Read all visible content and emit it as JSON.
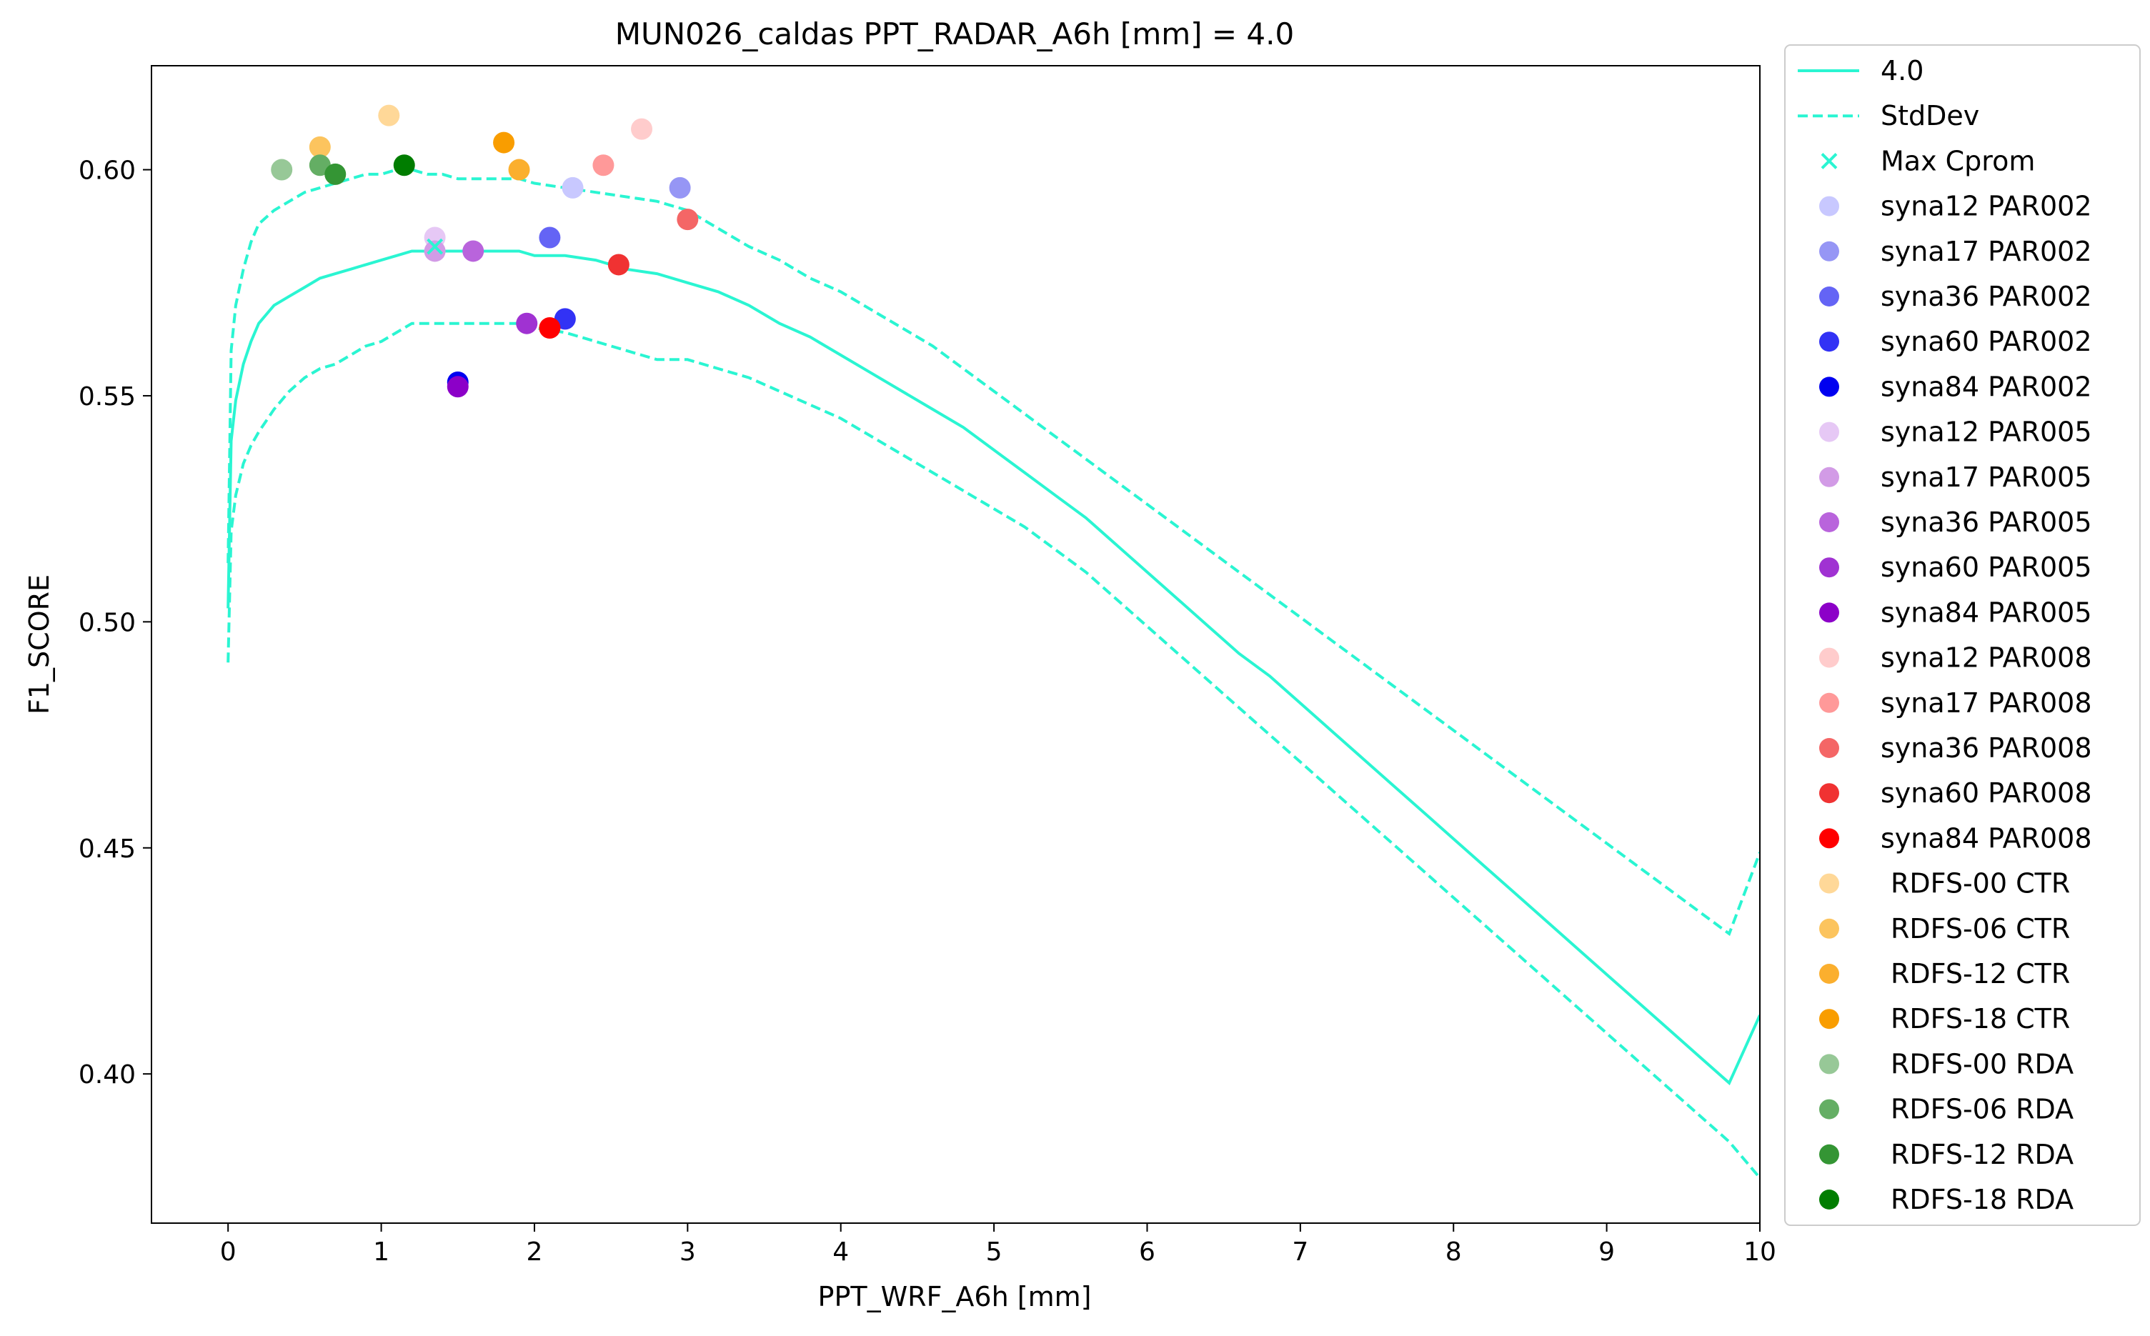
{
  "chart_data": {
    "type": "scatter",
    "title": "MUN026_caldas    PPT_RADAR_A6h [mm] = 4.0",
    "xlabel": "PPT_WRF_A6h [mm]",
    "ylabel": "F1_SCORE",
    "xlim": [
      -0.5,
      10
    ],
    "ylim": [
      0.367,
      0.623
    ],
    "xticks": [
      "0",
      "1",
      "2",
      "3",
      "4",
      "5",
      "6",
      "7",
      "8",
      "9",
      "10"
    ],
    "yticks": [
      "0.40",
      "0.45",
      "0.50",
      "0.55",
      "0.60"
    ],
    "grid": false,
    "legend_position": "outside-right",
    "curve_color": "#2af5d2",
    "lines": [
      {
        "name": "4.0",
        "style": "solid",
        "x": [
          0,
          0.02,
          0.05,
          0.1,
          0.15,
          0.2,
          0.3,
          0.4,
          0.5,
          0.6,
          0.7,
          0.8,
          0.9,
          1.0,
          1.1,
          1.2,
          1.3,
          1.4,
          1.5,
          1.6,
          1.7,
          1.8,
          1.9,
          2.0,
          2.2,
          2.4,
          2.6,
          2.8,
          3.0,
          3.2,
          3.4,
          3.6,
          3.8,
          4.0,
          4.2,
          4.4,
          4.6,
          4.8,
          5.0,
          5.2,
          5.4,
          5.6,
          5.8,
          6.0,
          6.2,
          6.4,
          6.6,
          6.8,
          7.0,
          7.2,
          7.4,
          7.6,
          7.8,
          8.0,
          8.2,
          8.4,
          8.6,
          8.8,
          9.0,
          9.2,
          9.4,
          9.6,
          9.8,
          10.0
        ],
        "y": [
          0.503,
          0.54,
          0.549,
          0.557,
          0.562,
          0.566,
          0.57,
          0.572,
          0.574,
          0.576,
          0.577,
          0.578,
          0.579,
          0.58,
          0.581,
          0.582,
          0.582,
          0.582,
          0.582,
          0.582,
          0.582,
          0.582,
          0.582,
          0.581,
          0.581,
          0.58,
          0.578,
          0.577,
          0.575,
          0.573,
          0.57,
          0.566,
          0.563,
          0.559,
          0.555,
          0.551,
          0.547,
          0.543,
          0.538,
          0.533,
          0.528,
          0.523,
          0.517,
          0.511,
          0.505,
          0.499,
          0.493,
          0.488,
          0.482,
          0.476,
          0.47,
          0.464,
          0.458,
          0.452,
          0.446,
          0.44,
          0.434,
          0.428,
          0.422,
          0.416,
          0.41,
          0.404,
          0.398,
          0.413
        ]
      },
      {
        "name": "StdDev",
        "style": "dashed",
        "x": [
          0,
          0.02,
          0.05,
          0.1,
          0.15,
          0.2,
          0.3,
          0.4,
          0.5,
          0.6,
          0.7,
          0.8,
          0.9,
          1.0,
          1.1,
          1.2,
          1.3,
          1.4,
          1.5,
          1.6,
          1.7,
          1.8,
          1.9,
          2.0,
          2.2,
          2.4,
          2.6,
          2.8,
          3.0,
          3.2,
          3.4,
          3.6,
          3.8,
          4.0,
          4.2,
          4.4,
          4.6,
          4.8,
          5.0,
          5.2,
          5.4,
          5.6,
          5.8,
          6.0,
          6.2,
          6.4,
          6.6,
          6.8,
          7.0,
          7.2,
          7.4,
          7.6,
          7.8,
          8.0,
          8.2,
          8.4,
          8.6,
          8.8,
          9.0,
          9.2,
          9.4,
          9.6,
          9.8,
          10.0
        ],
        "y": [
          0.513,
          0.56,
          0.57,
          0.578,
          0.584,
          0.588,
          0.591,
          0.593,
          0.595,
          0.596,
          0.597,
          0.598,
          0.599,
          0.599,
          0.6,
          0.6,
          0.599,
          0.599,
          0.598,
          0.598,
          0.598,
          0.598,
          0.598,
          0.597,
          0.596,
          0.595,
          0.594,
          0.593,
          0.591,
          0.587,
          0.583,
          0.58,
          0.576,
          0.573,
          0.569,
          0.565,
          0.561,
          0.556,
          0.551,
          0.546,
          0.541,
          0.536,
          0.531,
          0.526,
          0.521,
          0.516,
          0.511,
          0.506,
          0.501,
          0.496,
          0.491,
          0.486,
          0.481,
          0.476,
          0.471,
          0.466,
          0.461,
          0.456,
          0.451,
          0.446,
          0.441,
          0.436,
          0.431,
          0.449
        ]
      },
      {
        "name": "",
        "style": "dashed",
        "x": [
          0,
          0.02,
          0.05,
          0.1,
          0.15,
          0.2,
          0.3,
          0.4,
          0.5,
          0.6,
          0.7,
          0.8,
          0.9,
          1.0,
          1.1,
          1.2,
          1.3,
          1.4,
          1.5,
          1.6,
          1.7,
          1.8,
          1.9,
          2.0,
          2.2,
          2.4,
          2.6,
          2.8,
          3.0,
          3.2,
          3.4,
          3.6,
          3.8,
          4.0,
          4.2,
          4.4,
          4.6,
          4.8,
          5.0,
          5.2,
          5.4,
          5.6,
          5.8,
          6.0,
          6.2,
          6.4,
          6.6,
          6.8,
          7.0,
          7.2,
          7.4,
          7.6,
          7.8,
          8.0,
          8.2,
          8.4,
          8.6,
          8.8,
          9.0,
          9.2,
          9.4,
          9.6,
          9.8,
          10.0
        ],
        "y": [
          0.491,
          0.52,
          0.528,
          0.535,
          0.539,
          0.542,
          0.547,
          0.551,
          0.554,
          0.556,
          0.557,
          0.559,
          0.561,
          0.562,
          0.564,
          0.566,
          0.566,
          0.566,
          0.566,
          0.566,
          0.566,
          0.566,
          0.566,
          0.565,
          0.564,
          0.562,
          0.56,
          0.558,
          0.558,
          0.556,
          0.554,
          0.551,
          0.548,
          0.545,
          0.541,
          0.537,
          0.533,
          0.529,
          0.525,
          0.521,
          0.516,
          0.511,
          0.505,
          0.499,
          0.493,
          0.487,
          0.481,
          0.475,
          0.469,
          0.463,
          0.457,
          0.451,
          0.445,
          0.439,
          0.433,
          0.427,
          0.421,
          0.415,
          0.409,
          0.403,
          0.397,
          0.391,
          0.385,
          0.377
        ]
      }
    ],
    "max_marker": {
      "label": "Max Cprom",
      "x": 1.35,
      "y": 0.583
    },
    "points": [
      {
        "label": "syna12 PAR002",
        "color": "#c8c8ff",
        "x": 2.25,
        "y": 0.596
      },
      {
        "label": "syna17 PAR002",
        "color": "#9696f5",
        "x": 2.95,
        "y": 0.596
      },
      {
        "label": "syna36 PAR002",
        "color": "#6464f5",
        "x": 2.1,
        "y": 0.585
      },
      {
        "label": "syna60 PAR002",
        "color": "#3232f5",
        "x": 2.2,
        "y": 0.567
      },
      {
        "label": "syna84 PAR002",
        "color": "#0000f0",
        "x": 1.5,
        "y": 0.553
      },
      {
        "label": "syna12 PAR005",
        "color": "#e6c8f5",
        "x": 1.35,
        "y": 0.585
      },
      {
        "label": "syna17 PAR005",
        "color": "#d29be6",
        "x": 1.35,
        "y": 0.582
      },
      {
        "label": "syna36 PAR005",
        "color": "#b964dc",
        "x": 1.6,
        "y": 0.582
      },
      {
        "label": "syna60 PAR005",
        "color": "#a032d2",
        "x": 1.95,
        "y": 0.566
      },
      {
        "label": "syna84 PAR005",
        "color": "#8c00c8",
        "x": 1.5,
        "y": 0.552
      },
      {
        "label": "syna12 PAR008",
        "color": "#ffcccc",
        "x": 2.7,
        "y": 0.609
      },
      {
        "label": "syna17 PAR008",
        "color": "#ff9999",
        "x": 2.45,
        "y": 0.601
      },
      {
        "label": "syna36 PAR008",
        "color": "#f46666",
        "x": 3.0,
        "y": 0.589
      },
      {
        "label": "syna60 PAR008",
        "color": "#f03232",
        "x": 2.55,
        "y": 0.579
      },
      {
        "label": "syna84 PAR008",
        "color": "#ff0000",
        "x": 2.1,
        "y": 0.565
      },
      {
        "label": "RDFS-00 CTR",
        "color": "#ffd898",
        "x": 1.05,
        "y": 0.612
      },
      {
        "label": "RDFS-06 CTR",
        "color": "#fcc45e",
        "x": 0.6,
        "y": 0.605
      },
      {
        "label": "RDFS-12 CTR",
        "color": "#fbaf2e",
        "x": 1.9,
        "y": 0.6
      },
      {
        "label": "RDFS-18 CTR",
        "color": "#f99d00",
        "x": 1.8,
        "y": 0.606
      },
      {
        "label": "RDFS-00 RDA",
        "color": "#97c897",
        "x": 0.35,
        "y": 0.6
      },
      {
        "label": "RDFS-06 RDA",
        "color": "#64ae64",
        "x": 0.6,
        "y": 0.601
      },
      {
        "label": "RDFS-12 RDA",
        "color": "#349534",
        "x": 0.7,
        "y": 0.599
      },
      {
        "label": "RDFS-18 RDA",
        "color": "#007d00",
        "x": 1.15,
        "y": 0.601
      }
    ]
  }
}
